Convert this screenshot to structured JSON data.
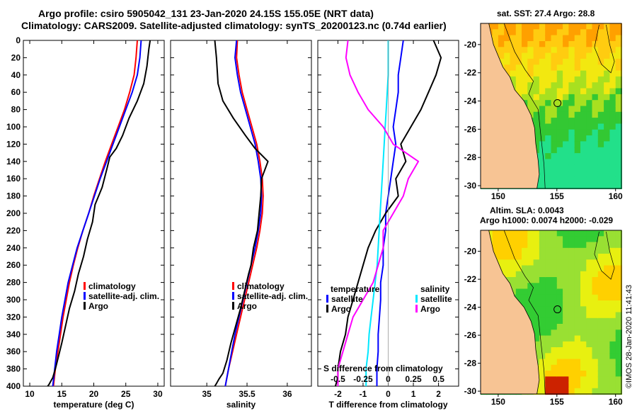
{
  "header": {
    "title_line1": "Argo profile: csiro 5905042_131 23-Jan-2020 24.15S 155.05E (NRT data)",
    "title_line2": "Climatology: CARS2009. Satellite-adjusted climatology: synTS_20200123.nc (0.74d earlier)"
  },
  "colors": {
    "climatology": "#ff0000",
    "satellite": "#0000ff",
    "argo": "#000000",
    "s_satellite": "#00e8ff",
    "s_argo": "#ff00ff"
  },
  "chart_data": [
    {
      "type": "line",
      "id": "temperature",
      "xlabel": "temperature (deg C)",
      "ylabel": "",
      "xlim": [
        9,
        31
      ],
      "ylim": [
        400,
        0
      ],
      "xticks": [
        10,
        15,
        20,
        25,
        30
      ],
      "yticks": [
        0,
        20,
        40,
        60,
        80,
        100,
        120,
        140,
        160,
        180,
        200,
        220,
        240,
        260,
        280,
        300,
        320,
        340,
        360,
        380,
        400
      ],
      "legend": [
        "climatology",
        "satellite-adj. clim.",
        "Argo"
      ],
      "series": [
        {
          "name": "climatology",
          "x": [
            26.8,
            26.6,
            26.3,
            25.6,
            24.8,
            23.8,
            22.8,
            21.8,
            20.9,
            20.0,
            19.2,
            18.3,
            17.5,
            16.8,
            16.2,
            15.7,
            15.2,
            14.8,
            14.4,
            14.0,
            13.7
          ],
          "y": [
            0,
            20,
            40,
            60,
            80,
            100,
            120,
            140,
            160,
            180,
            200,
            220,
            240,
            260,
            280,
            300,
            320,
            340,
            360,
            380,
            400
          ]
        },
        {
          "name": "satellite-adj. clim.",
          "x": [
            27.4,
            27.2,
            26.8,
            26.0,
            25.0,
            24.0,
            23.0,
            22.0,
            21.0,
            20.1,
            19.2,
            18.3,
            17.4,
            16.7,
            16.0,
            15.5,
            15.0,
            14.6,
            14.2,
            13.9,
            13.6
          ],
          "y": [
            0,
            20,
            40,
            60,
            80,
            100,
            120,
            140,
            160,
            180,
            200,
            220,
            240,
            260,
            280,
            300,
            320,
            340,
            360,
            380,
            400
          ]
        },
        {
          "name": "Argo",
          "x": [
            28.8,
            28.6,
            28.3,
            27.8,
            26.8,
            25.5,
            24.5,
            23.5,
            22.5,
            22.0,
            21.3,
            20.2,
            19.8,
            19.0,
            18.4,
            17.6,
            17.0,
            16.2,
            15.6,
            15.0,
            14.5,
            14.0,
            13.6,
            13.0,
            12.8
          ],
          "y": [
            0,
            10,
            30,
            50,
            70,
            90,
            110,
            125,
            135,
            150,
            170,
            190,
            210,
            230,
            250,
            270,
            290,
            310,
            330,
            350,
            365,
            380,
            390,
            398,
            400
          ]
        }
      ]
    },
    {
      "type": "line",
      "id": "salinity",
      "xlabel": "salinity",
      "ylabel": "",
      "xlim": [
        34.55,
        36.3
      ],
      "ylim": [
        400,
        0
      ],
      "xticks": [
        35,
        35.5,
        36
      ],
      "legend": [
        "climatology",
        "satellite-adj. clim.",
        "Argo"
      ],
      "series": [
        {
          "name": "climatology",
          "x": [
            35.38,
            35.37,
            35.4,
            35.44,
            35.5,
            35.56,
            35.62,
            35.66,
            35.69,
            35.7,
            35.69,
            35.66,
            35.62,
            35.57,
            35.52,
            35.47,
            35.42,
            35.37,
            35.32,
            35.27,
            35.23
          ],
          "y": [
            0,
            20,
            40,
            60,
            80,
            100,
            120,
            140,
            160,
            180,
            200,
            220,
            240,
            260,
            280,
            300,
            320,
            340,
            360,
            380,
            400
          ]
        },
        {
          "name": "satellite-adj. clim.",
          "x": [
            35.37,
            35.35,
            35.38,
            35.42,
            35.48,
            35.54,
            35.6,
            35.64,
            35.67,
            35.68,
            35.67,
            35.64,
            35.6,
            35.55,
            35.5,
            35.45,
            35.4,
            35.35,
            35.31,
            35.27,
            35.23
          ],
          "y": [
            0,
            20,
            40,
            60,
            80,
            100,
            120,
            140,
            160,
            180,
            200,
            220,
            240,
            260,
            280,
            300,
            320,
            340,
            360,
            380,
            400
          ]
        },
        {
          "name": "Argo",
          "x": [
            35.1,
            35.12,
            35.14,
            35.2,
            35.33,
            35.48,
            35.6,
            35.76,
            35.68,
            35.67,
            35.65,
            35.63,
            35.58,
            35.55,
            35.52,
            35.47,
            35.42,
            35.36,
            35.3,
            35.25,
            35.2,
            35.15,
            35.12,
            35.1
          ],
          "y": [
            0,
            20,
            50,
            70,
            90,
            110,
            125,
            140,
            160,
            180,
            200,
            220,
            240,
            260,
            270,
            290,
            310,
            330,
            350,
            370,
            385,
            392,
            397,
            400
          ]
        }
      ]
    },
    {
      "type": "line",
      "id": "differences",
      "xlabel": "T difference from climatology",
      "xlabel2": "S difference from climatology",
      "xlim": [
        -2.8,
        2.8
      ],
      "ylim": [
        400,
        0
      ],
      "xticks": [
        -2,
        -1,
        0,
        1,
        2
      ],
      "xticks_top": [
        -0.5,
        -0.25,
        0,
        0.25,
        0.5
      ],
      "legend_t": {
        "title": "temperature",
        "items": [
          "satellite",
          "Argo"
        ]
      },
      "legend_s": {
        "title": "salinity",
        "items": [
          "satellite",
          "Argo"
        ]
      },
      "series": [
        {
          "name": "T satellite",
          "x": [
            0.6,
            0.5,
            0.4,
            0.4,
            0.3,
            0.2,
            0.3,
            0.2,
            0.1,
            0.0,
            -0.1,
            -0.1,
            -0.2,
            -0.2,
            -0.3,
            -0.3,
            -0.35,
            -0.4,
            -0.4,
            -0.45,
            -0.45
          ],
          "y": [
            0,
            20,
            40,
            60,
            80,
            100,
            120,
            140,
            160,
            180,
            200,
            220,
            240,
            260,
            280,
            300,
            320,
            340,
            360,
            380,
            400
          ]
        },
        {
          "name": "T Argo",
          "x": [
            1.8,
            2.1,
            1.9,
            1.6,
            1.3,
            0.9,
            0.5,
            0.7,
            0.3,
            0.4,
            -0.1,
            -0.5,
            -0.8,
            -1.0,
            -1.2,
            -1.4,
            -1.6,
            -1.7,
            -1.9,
            -2.0,
            -2.0,
            -2.1
          ],
          "y": [
            0,
            20,
            40,
            60,
            80,
            100,
            120,
            140,
            160,
            180,
            200,
            220,
            240,
            260,
            280,
            300,
            320,
            340,
            360,
            380,
            390,
            400
          ]
        },
        {
          "name": "S satellite",
          "x": [
            0.0,
            0.0,
            0.0,
            -0.01,
            -0.02,
            -0.03,
            -0.04,
            -0.05,
            -0.06,
            -0.07,
            -0.08,
            -0.09,
            -0.1,
            -0.11,
            -0.13,
            -0.15,
            -0.17,
            -0.19,
            -0.2,
            -0.22,
            -0.22
          ],
          "y": [
            0,
            20,
            40,
            60,
            80,
            100,
            120,
            140,
            160,
            180,
            200,
            220,
            240,
            260,
            280,
            300,
            320,
            340,
            360,
            380,
            400
          ]
        },
        {
          "name": "S Argo",
          "x": [
            -0.4,
            -0.42,
            -0.38,
            -0.3,
            -0.2,
            -0.05,
            0.05,
            0.3,
            0.2,
            0.15,
            0.05,
            -0.05,
            -0.05,
            -0.1,
            -0.15,
            -0.25,
            -0.35,
            -0.4,
            -0.45,
            -0.5,
            -0.5
          ],
          "y": [
            0,
            20,
            40,
            60,
            80,
            100,
            120,
            140,
            160,
            180,
            200,
            220,
            240,
            260,
            280,
            300,
            320,
            340,
            360,
            380,
            400
          ]
        }
      ]
    },
    {
      "type": "heatmap",
      "id": "sst-map",
      "title": "sat. SST: 27.4 Argo: 28.8",
      "xticks": [
        150,
        155,
        160
      ],
      "yticks": [
        -20,
        -22,
        -24,
        -26,
        -28,
        -30
      ],
      "xlim": [
        148.5,
        160.5
      ],
      "ylim": [
        -30.2,
        -18.5
      ],
      "argo_position": [
        155.05,
        -24.15
      ]
    },
    {
      "type": "heatmap",
      "id": "sla-map",
      "title": "Altim. SLA: 0.0043",
      "subtitle": "Argo h1000: 0.0074 h2000: -0.029",
      "xticks": [
        150,
        155,
        160
      ],
      "yticks": [
        -20,
        -22,
        -24,
        -26,
        -28,
        -30
      ],
      "xlim": [
        148.5,
        160.5
      ],
      "ylim": [
        -30.2,
        -18.5
      ],
      "argo_position": [
        155.05,
        -24.15
      ]
    }
  ],
  "footer": {
    "credit": "©IMOS 28-Jan-2020 11:41:43"
  }
}
